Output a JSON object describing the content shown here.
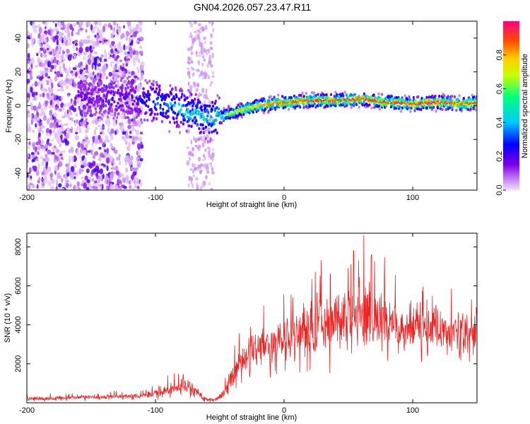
{
  "chart_data": [
    {
      "type": "heatmap",
      "title": "GN04.2026.057.23.47.R11",
      "xlabel": "Height of straight line (km)",
      "ylabel": "Frequency (Hz)",
      "xlim": [
        -200,
        150
      ],
      "ylim": [
        -50,
        50
      ],
      "x_ticks": [
        -200,
        -100,
        0,
        100
      ],
      "y_ticks": [
        -40,
        -20,
        0,
        20,
        40
      ],
      "colorbar": {
        "label": "Normalized spectral amplitude",
        "range": [
          0,
          1
        ],
        "ticks": [
          0.0,
          0.2,
          0.4,
          0.6,
          0.8
        ],
        "stops": [
          "#f0e0ff",
          "#c888f0",
          "#7d00e8",
          "#0000ff",
          "#00c8ff",
          "#00ff80",
          "#c8ff00",
          "#ffcc00",
          "#ff5000",
          "#ff0080"
        ]
      },
      "ridge": {
        "x": [
          -150,
          -120,
          -100,
          -80,
          -60,
          -50,
          -40,
          -30,
          -20,
          -10,
          0,
          20,
          40,
          60,
          80,
          100,
          120,
          140,
          150
        ],
        "frequency": [
          5,
          4,
          2,
          -2,
          -8,
          -7,
          -4,
          -2,
          0,
          1,
          2,
          3,
          3,
          4,
          2,
          1,
          2,
          1,
          2
        ],
        "amplitude": [
          0.15,
          0.2,
          0.35,
          0.45,
          0.5,
          0.6,
          0.7,
          0.75,
          0.8,
          0.85,
          0.9,
          0.95,
          0.95,
          0.95,
          0.95,
          0.95,
          0.95,
          0.9,
          0.9
        ]
      },
      "noise": {
        "scattered_region_x": [
          -200,
          -110
        ],
        "band_region_x": [
          -75,
          -55
        ]
      }
    },
    {
      "type": "line",
      "xlabel": "Height of straight line (km)",
      "ylabel": "SNR (10 * v/v)",
      "xlim": [
        -200,
        150
      ],
      "ylim": [
        0,
        8700
      ],
      "x_ticks": [
        -200,
        -100,
        0,
        100
      ],
      "y_ticks": [
        2000,
        4000,
        6000,
        8000
      ],
      "color": "#ee2222",
      "envelope": {
        "x": [
          -200,
          -150,
          -110,
          -100,
          -90,
          -80,
          -75,
          -70,
          -65,
          -60,
          -55,
          -50,
          -45,
          -40,
          -35,
          -30,
          -25,
          -20,
          -15,
          -10,
          -5,
          0,
          10,
          20,
          30,
          40,
          50,
          60,
          70,
          80,
          90,
          100,
          110,
          120,
          130,
          140,
          150
        ],
        "mean": [
          200,
          300,
          350,
          500,
          700,
          850,
          900,
          700,
          400,
          200,
          150,
          250,
          700,
          1300,
          1900,
          2300,
          2600,
          2800,
          3000,
          3100,
          3200,
          3300,
          3600,
          3900,
          4000,
          4200,
          4400,
          4500,
          4300,
          4100,
          4000,
          4000,
          3900,
          3800,
          3700,
          3600,
          3600
        ],
        "spread": [
          120,
          150,
          180,
          300,
          400,
          450,
          500,
          400,
          250,
          120,
          100,
          200,
          500,
          700,
          900,
          1000,
          1100,
          1200,
          1300,
          1300,
          1400,
          1500,
          1600,
          1700,
          1800,
          1900,
          2000,
          2100,
          1900,
          1700,
          1600,
          1500,
          1400,
          1400,
          1300,
          1300,
          1200
        ]
      },
      "peaks": [
        {
          "x": 52,
          "y": 7100
        },
        {
          "x": 54,
          "y": 7800
        },
        {
          "x": 58,
          "y": 7300
        },
        {
          "x": 62,
          "y": 8600
        },
        {
          "x": 68,
          "y": 7600
        },
        {
          "x": 36,
          "y": 6600
        }
      ]
    }
  ]
}
